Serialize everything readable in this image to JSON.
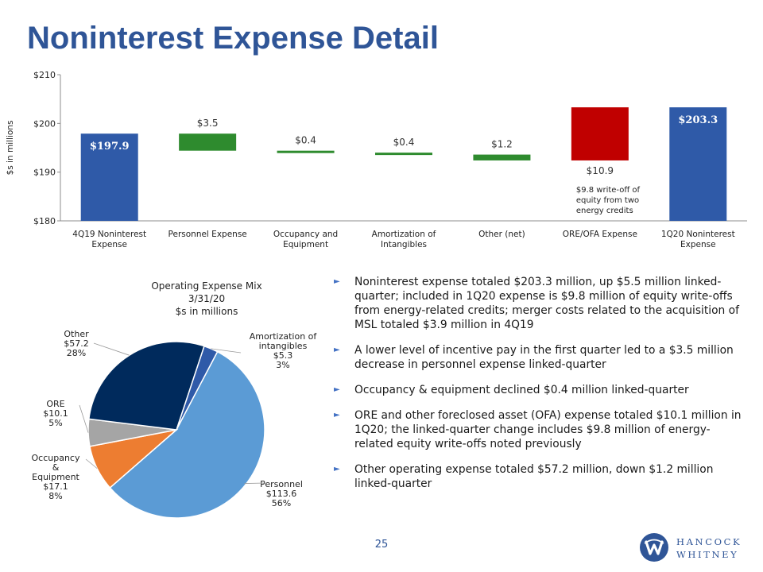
{
  "page": {
    "title": "Noninterest Expense Detail",
    "page_number": "25",
    "logo_line1": "HANCOCK",
    "logo_line2": "WHITNEY"
  },
  "colors": {
    "title": "#2f5597",
    "total_bar": "#2f5aa8",
    "decrease_bar": "#2e8b2e",
    "increase_bar": "#c00000",
    "pie_personnel": "#5b9bd5",
    "pie_occupancy": "#ed7d31",
    "pie_ore": "#a5a5a5",
    "pie_other": "#002a5c",
    "pie_amortization": "#2f5aa8"
  },
  "chart_data": [
    {
      "type": "bar",
      "subtype": "waterfall",
      "ylabel": "$s in millions",
      "ylim": [
        180,
        210
      ],
      "yticks": [
        "$180",
        "$190",
        "$200",
        "$210"
      ],
      "grid": false,
      "categories": [
        "4Q19 Noninterest Expense",
        "Personnel Expense",
        "Occupancy and Equipment",
        "Amortization of Intangibles",
        "Other (net)",
        "ORE/OFA Expense",
        "1Q20 Noninterest Expense"
      ],
      "bars": [
        {
          "kind": "total",
          "start": 180,
          "end": 197.9,
          "label": "$197.9"
        },
        {
          "kind": "decrease",
          "start": 197.9,
          "end": 194.4,
          "label": "$3.5"
        },
        {
          "kind": "decrease",
          "start": 194.4,
          "end": 194.0,
          "label": "$0.4"
        },
        {
          "kind": "decrease",
          "start": 194.0,
          "end": 193.6,
          "label": "$0.4"
        },
        {
          "kind": "decrease",
          "start": 193.6,
          "end": 192.4,
          "label": "$1.2"
        },
        {
          "kind": "increase",
          "start": 192.4,
          "end": 203.3,
          "label": "$10.9"
        },
        {
          "kind": "total",
          "start": 180,
          "end": 203.3,
          "label": "$203.3"
        }
      ],
      "annotation": "$9.8 write-off of equity from two energy credits"
    },
    {
      "type": "pie",
      "title_lines": [
        "Operating Expense Mix",
        "3/31/20",
        "$s in millions"
      ],
      "slices": [
        {
          "name": "Amortization of intangibles",
          "value": 5.3,
          "value_label": "$5.3",
          "pct": "3%"
        },
        {
          "name": "Personnel",
          "value": 113.6,
          "value_label": "$113.6",
          "pct": "56%"
        },
        {
          "name": "Occupancy & Equipment",
          "value": 17.1,
          "value_label": "$17.1",
          "pct": "8%"
        },
        {
          "name": "ORE",
          "value": 10.1,
          "value_label": "$10.1",
          "pct": "5%"
        },
        {
          "name": "Other",
          "value": 57.2,
          "value_label": "$57.2",
          "pct": "28%"
        }
      ]
    }
  ],
  "bullets": [
    "Noninterest expense totaled $203.3 million, up $5.5 million linked-quarter; included in 1Q20 expense is $9.8 million of equity write-offs from energy-related credits; merger costs related to the acquisition of MSL totaled $3.9 million in 4Q19",
    "A lower level of incentive pay in the first quarter led to a $3.5 million decrease in personnel expense linked-quarter",
    "Occupancy & equipment declined $0.4 million linked-quarter",
    "ORE and other foreclosed asset (OFA) expense totaled $10.1 million in 1Q20; the linked-quarter change includes $9.8 million of energy-related equity write-offs noted previously",
    "Other operating expense totaled $57.2 million, down $1.2 million linked-quarter"
  ]
}
